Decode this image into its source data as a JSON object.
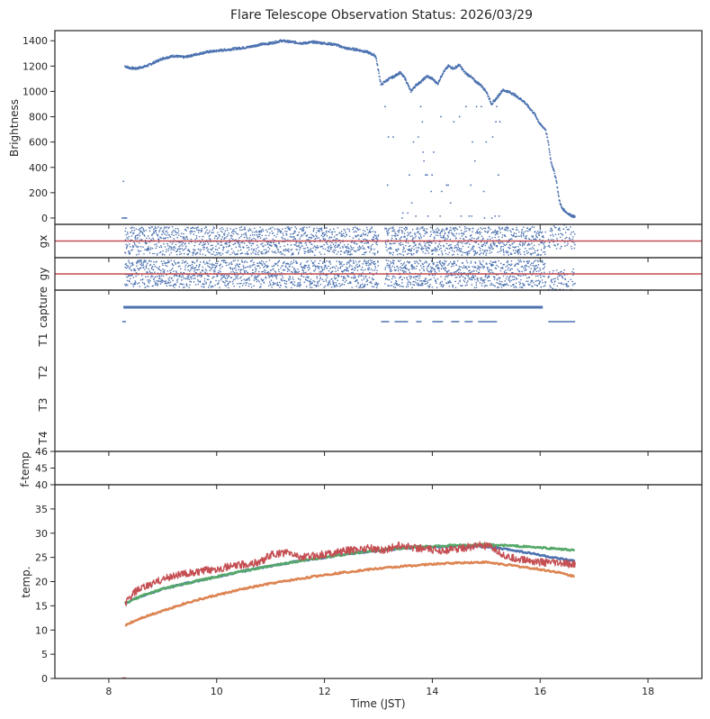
{
  "figure": {
    "title": "Flare Telescope Observation Status: 2026/03/29"
  },
  "chart_data": [
    {
      "id": "brightness",
      "type": "scatter",
      "ylabel": "Brightness",
      "ylim": [
        -50,
        1480
      ],
      "yticks": [
        0,
        200,
        400,
        600,
        800,
        1000,
        1200,
        1400
      ],
      "color": "#4c72b0",
      "series": [
        {
          "x": [
            8.25,
            8.3,
            8.35,
            8.4,
            8.5,
            8.6,
            8.7,
            8.8,
            8.9,
            9.0,
            9.2,
            9.4,
            9.6,
            9.8,
            10.0,
            10.2,
            10.4,
            10.6,
            10.8,
            11.0,
            11.2,
            11.4,
            11.6,
            11.8,
            12.0,
            12.2,
            12.4,
            12.6,
            12.8,
            12.95,
            13.05,
            13.1,
            13.2,
            13.3,
            13.4,
            13.5,
            13.6,
            13.7,
            13.8,
            13.9,
            14.0,
            14.1,
            14.2,
            14.3,
            14.4,
            14.5,
            14.6,
            14.7,
            14.8,
            14.9,
            15.0,
            15.1,
            15.2,
            15.3,
            15.4,
            15.5,
            15.6,
            15.7,
            15.8,
            15.9,
            16.0,
            16.1,
            16.15,
            16.2,
            16.25,
            16.3,
            16.35,
            16.4,
            16.5,
            16.6,
            16.65
          ],
          "y": [
            0,
            1200,
            1190,
            1185,
            1180,
            1190,
            1200,
            1220,
            1240,
            1260,
            1280,
            1270,
            1290,
            1310,
            1320,
            1330,
            1340,
            1350,
            1370,
            1380,
            1400,
            1390,
            1380,
            1390,
            1380,
            1370,
            1340,
            1330,
            1310,
            1280,
            1050,
            1070,
            1100,
            1120,
            1150,
            1100,
            1000,
            1050,
            1080,
            1120,
            1100,
            1060,
            1150,
            1200,
            1180,
            1210,
            1150,
            1120,
            1080,
            1050,
            1000,
            900,
            950,
            1010,
            1000,
            980,
            950,
            920,
            870,
            820,
            740,
            700,
            600,
            450,
            380,
            300,
            150,
            80,
            40,
            15,
            10
          ]
        }
      ],
      "scatter_y": [
        0,
        15,
        40,
        70,
        120,
        210,
        260,
        340,
        450,
        520,
        600,
        640,
        760,
        800,
        880,
        920
      ]
    },
    {
      "id": "gx",
      "type": "scatter",
      "ylabel": "gx",
      "color": "#4c72b0",
      "reference_line_color": "#c44e52"
    },
    {
      "id": "gy",
      "type": "scatter",
      "ylabel": "gy",
      "color": "#4c72b0",
      "reference_line_color": "#c44e52"
    },
    {
      "id": "capture",
      "type": "scatter",
      "ylabel_rows": [
        "capture",
        "T1",
        "T2",
        "T3",
        "T4"
      ],
      "color": "#4c72b0",
      "segments": [
        {
          "row": "capture",
          "from": 8.27,
          "to": 16.05
        },
        {
          "row": "T1",
          "from": 8.25,
          "to": 8.32
        },
        {
          "row": "T1",
          "from": 13.05,
          "to": 13.2
        },
        {
          "row": "T1",
          "from": 13.3,
          "to": 13.55
        },
        {
          "row": "T1",
          "from": 13.7,
          "to": 13.8
        },
        {
          "row": "T1",
          "from": 14.0,
          "to": 14.2
        },
        {
          "row": "T1",
          "from": 14.35,
          "to": 14.5
        },
        {
          "row": "T1",
          "from": 14.6,
          "to": 14.75
        },
        {
          "row": "T1",
          "from": 14.85,
          "to": 15.2
        },
        {
          "row": "T1",
          "from": 16.15,
          "to": 16.65
        }
      ]
    },
    {
      "id": "f-temp",
      "type": "line",
      "ylabel": "f-temp",
      "ylim": [
        44,
        46
      ],
      "yticks": [
        45,
        46
      ]
    },
    {
      "id": "temp",
      "type": "line",
      "ylabel": "temp.",
      "xlabel": "Time (JST)",
      "xlim": [
        7,
        19
      ],
      "xticks": [
        8,
        10,
        12,
        14,
        16,
        18
      ],
      "ylim": [
        0,
        40
      ],
      "yticks": [
        0,
        5,
        10,
        15,
        20,
        25,
        30,
        35,
        40
      ],
      "series": [
        {
          "color": "#c44e52",
          "x": [
            8.3,
            8.5,
            8.8,
            9.0,
            9.3,
            9.6,
            9.9,
            10.2,
            10.5,
            10.8,
            11.0,
            11.3,
            11.6,
            11.9,
            12.2,
            12.5,
            12.8,
            13.1,
            13.4,
            13.7,
            14.0,
            14.3,
            14.6,
            14.9,
            15.1,
            15.4,
            15.7,
            16.0,
            16.3,
            16.65
          ],
          "y": [
            15.5,
            18.0,
            19.5,
            20.5,
            21.5,
            21.8,
            22.5,
            23.0,
            23.5,
            24.0,
            25.5,
            26.0,
            25.0,
            25.5,
            26.0,
            26.5,
            27.0,
            26.5,
            27.5,
            27.0,
            26.5,
            26.5,
            27.0,
            27.5,
            27.0,
            25.0,
            24.5,
            24.0,
            23.8,
            23.5
          ]
        },
        {
          "color": "#4c72b0",
          "x": [
            8.3,
            8.6,
            9.0,
            9.5,
            10.0,
            10.5,
            11.0,
            11.5,
            12.0,
            12.5,
            13.0,
            13.5,
            14.0,
            14.5,
            15.0,
            15.5,
            16.0,
            16.3,
            16.65
          ],
          "y": [
            15.5,
            17.0,
            18.5,
            19.8,
            21.0,
            22.2,
            23.2,
            24.2,
            25.0,
            25.8,
            26.4,
            26.9,
            27.2,
            27.3,
            27.2,
            26.5,
            25.5,
            24.8,
            24.2
          ]
        },
        {
          "color": "#55a868",
          "x": [
            8.3,
            8.6,
            9.0,
            9.5,
            10.0,
            10.5,
            11.0,
            11.5,
            12.0,
            12.5,
            13.0,
            13.5,
            14.0,
            14.5,
            15.0,
            15.5,
            16.0,
            16.3,
            16.65
          ],
          "y": [
            15.5,
            17.0,
            18.5,
            19.8,
            21.0,
            22.2,
            23.2,
            24.2,
            25.0,
            25.8,
            26.5,
            27.0,
            27.3,
            27.5,
            27.6,
            27.4,
            27.0,
            26.8,
            26.4
          ]
        },
        {
          "color": "#dd8452",
          "x": [
            8.3,
            8.6,
            9.0,
            9.5,
            10.0,
            10.5,
            11.0,
            11.5,
            12.0,
            12.5,
            13.0,
            13.5,
            14.0,
            14.5,
            15.0,
            15.5,
            16.0,
            16.3,
            16.65
          ],
          "y": [
            11.0,
            12.5,
            14.0,
            15.8,
            17.2,
            18.5,
            19.6,
            20.5,
            21.4,
            22.1,
            22.7,
            23.2,
            23.6,
            23.9,
            24.0,
            23.3,
            22.5,
            22.0,
            21.0
          ]
        }
      ]
    }
  ]
}
